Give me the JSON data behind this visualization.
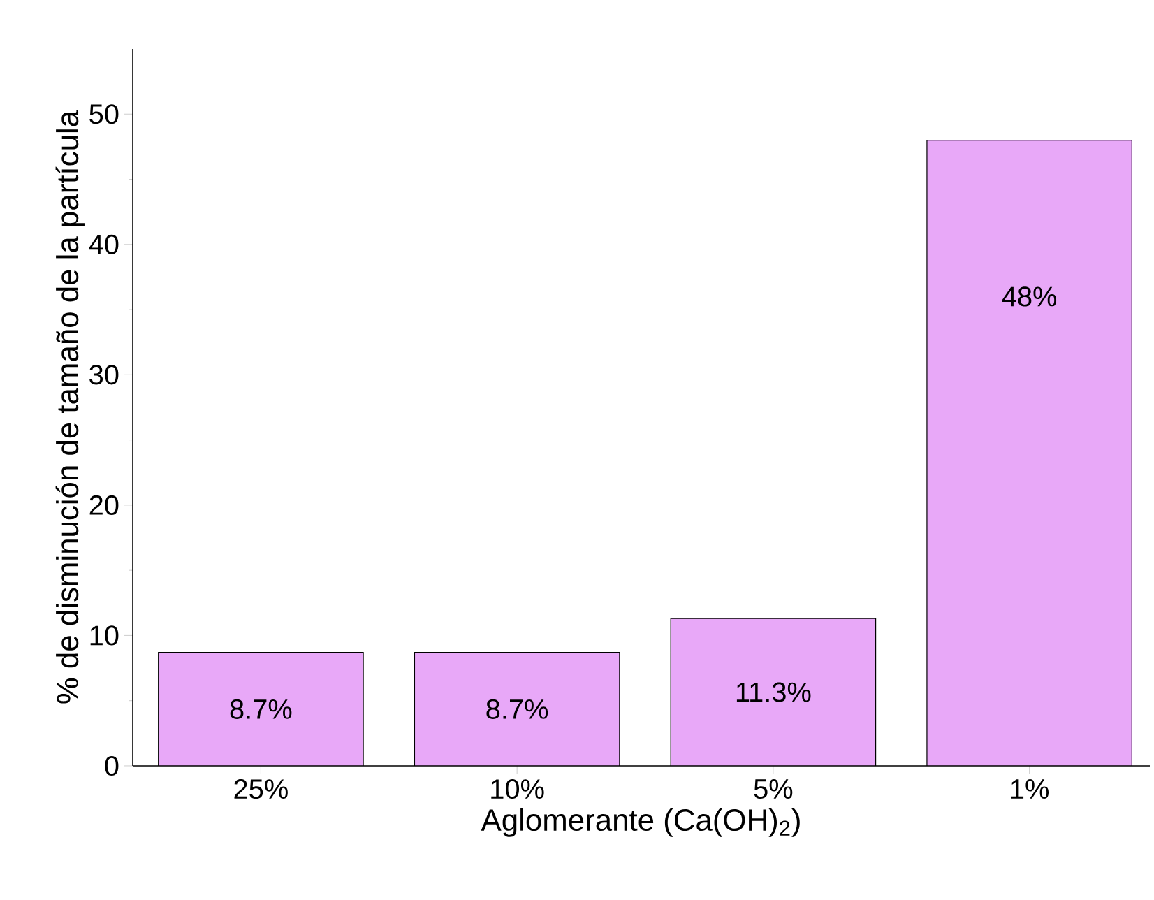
{
  "chart_data": {
    "type": "bar",
    "xlabel": "Aglomerante (Ca(OH)$_{2}$)",
    "ylabel": "% de disminución de tamaño de la partícula",
    "categories": [
      "25%",
      "10%",
      "5%",
      "1%"
    ],
    "values": [
      8.7,
      8.7,
      11.3,
      48
    ],
    "value_labels": [
      "8.7%",
      "8.7%",
      "11.3%",
      "48%"
    ],
    "color": "#e8a8f8",
    "ylim": [
      0,
      55
    ],
    "yticks": [
      0,
      10,
      20,
      30,
      40,
      50
    ]
  }
}
